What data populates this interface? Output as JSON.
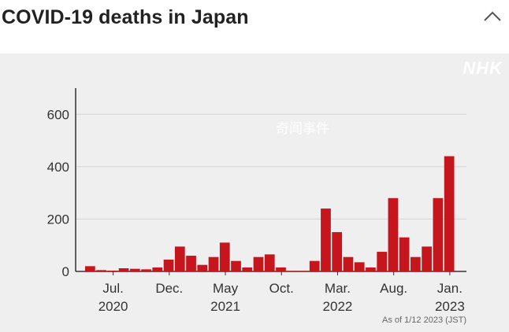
{
  "header": {
    "title": "COVID-19 deaths in Japan",
    "collapse_icon": "chevron-up-icon"
  },
  "panel": {
    "logo_text": "NHK",
    "watermark": "奇闻事件",
    "footnote": "As of 1/12 2023 (JST)"
  },
  "colors": {
    "bar": "#c4161c",
    "panel_bg": "#efefef",
    "grid": "#d4d4d4"
  },
  "chart_data": {
    "type": "bar",
    "title": "",
    "xlabel": "",
    "ylabel": "",
    "ylim": [
      0,
      700
    ],
    "yticks": [
      0,
      200,
      400,
      600
    ],
    "grid": true,
    "x_tick_labels": [
      {
        "label": "Jul.",
        "year": "2020"
      },
      {
        "label": "Dec.",
        "year": ""
      },
      {
        "label": "May",
        "year": "2021"
      },
      {
        "label": "Oct.",
        "year": ""
      },
      {
        "label": "Mar.",
        "year": "2022"
      },
      {
        "label": "Aug.",
        "year": ""
      },
      {
        "label": "Jan.",
        "year": "2023"
      }
    ],
    "x_start": "2020-05",
    "x_end": "2023-01",
    "series": [
      {
        "monthly_daily_deaths_estimate": [
          {
            "month": "2020-05",
            "value": 20
          },
          {
            "month": "2020-06",
            "value": 5
          },
          {
            "month": "2020-07",
            "value": 3
          },
          {
            "month": "2020-08",
            "value": 12
          },
          {
            "month": "2020-09",
            "value": 10
          },
          {
            "month": "2020-10",
            "value": 8
          },
          {
            "month": "2020-11",
            "value": 15
          },
          {
            "month": "2020-12",
            "value": 45
          },
          {
            "month": "2021-01",
            "value": 95
          },
          {
            "month": "2021-02",
            "value": 60
          },
          {
            "month": "2021-03",
            "value": 25
          },
          {
            "month": "2021-04",
            "value": 55
          },
          {
            "month": "2021-05",
            "value": 110
          },
          {
            "month": "2021-06",
            "value": 40
          },
          {
            "month": "2021-07",
            "value": 15
          },
          {
            "month": "2021-08",
            "value": 55
          },
          {
            "month": "2021-09",
            "value": 65
          },
          {
            "month": "2021-10",
            "value": 15
          },
          {
            "month": "2021-11",
            "value": 2
          },
          {
            "month": "2021-12",
            "value": 2
          },
          {
            "month": "2022-01",
            "value": 40
          },
          {
            "month": "2022-02",
            "value": 240
          },
          {
            "month": "2022-03",
            "value": 150
          },
          {
            "month": "2022-04",
            "value": 55
          },
          {
            "month": "2022-05",
            "value": 35
          },
          {
            "month": "2022-06",
            "value": 15
          },
          {
            "month": "2022-07",
            "value": 75
          },
          {
            "month": "2022-08",
            "value": 280
          },
          {
            "month": "2022-09",
            "value": 130
          },
          {
            "month": "2022-10",
            "value": 55
          },
          {
            "month": "2022-11",
            "value": 95
          },
          {
            "month": "2022-12",
            "value": 280
          },
          {
            "month": "2023-01",
            "value": 440
          }
        ]
      }
    ]
  }
}
